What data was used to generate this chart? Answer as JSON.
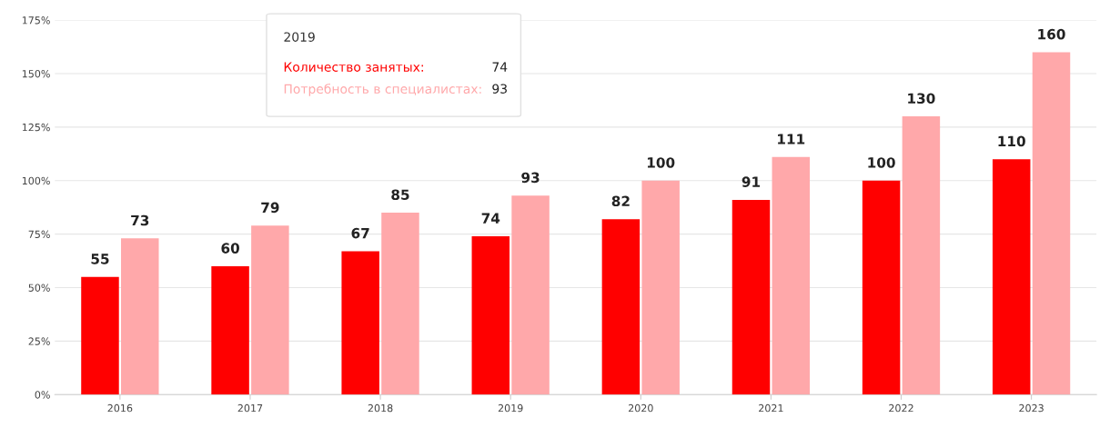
{
  "chart_data": {
    "type": "bar",
    "categories": [
      "2016",
      "2017",
      "2018",
      "2019",
      "2020",
      "2021",
      "2022",
      "2023"
    ],
    "series": [
      {
        "name": "Количество занятых:",
        "color": "#ff0000",
        "values": [
          55,
          60,
          67,
          74,
          82,
          91,
          100,
          110
        ]
      },
      {
        "name": "Потребность в специалистах:",
        "color": "#ffa8aa",
        "values": [
          73,
          79,
          85,
          93,
          100,
          111,
          130,
          160
        ]
      }
    ],
    "ylim": [
      0,
      175
    ],
    "yticks": [
      {
        "value": 0,
        "label": "0%"
      },
      {
        "value": 25,
        "label": "25%"
      },
      {
        "value": 50,
        "label": "50%"
      },
      {
        "value": 75,
        "label": "75%"
      },
      {
        "value": 100,
        "label": "100%"
      },
      {
        "value": 125,
        "label": "125%"
      },
      {
        "value": 150,
        "label": "150%"
      },
      {
        "value": 175,
        "label": "175%"
      }
    ],
    "grid": "y",
    "data_labels": true,
    "legend": "top left",
    "legend_title": "2019",
    "annotations": [
      "74",
      "93"
    ]
  }
}
